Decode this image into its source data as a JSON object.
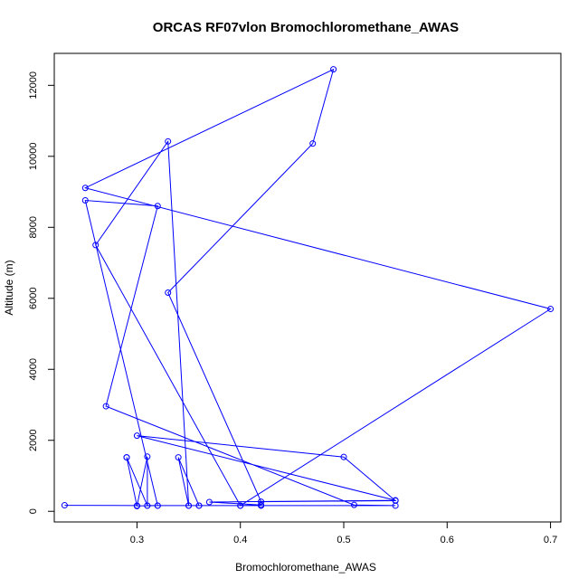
{
  "chart_data": {
    "type": "line",
    "title": "ORCAS RF07vlon Bromochloromethane_AWAS",
    "xlabel": "Bromochloromethane_AWAS",
    "ylabel": "Altitude (m)",
    "xlim": [
      0.22,
      0.71
    ],
    "ylim": [
      -300,
      12900
    ],
    "x_ticks": [
      "0.3",
      "0.4",
      "0.5",
      "0.6",
      "0.7"
    ],
    "y_ticks": [
      "0",
      "2000",
      "4000",
      "6000",
      "8000",
      "10000",
      "12000"
    ],
    "grid": false,
    "markers": "open-circle",
    "colors": {
      "series": "#0000ff",
      "axes": "#000000"
    },
    "series": [
      {
        "x": [
          0.23,
          0.3,
          0.3,
          0.31,
          0.31,
          0.35,
          0.42,
          0.55,
          0.51,
          0.27,
          0.32,
          0.25,
          0.32,
          0.3,
          0.29,
          0.29,
          0.31,
          0.32,
          0.36,
          0.4,
          0.42,
          0.37,
          0.55,
          0.3,
          0.5,
          0.55,
          0.42,
          0.33,
          0.47,
          0.49,
          0.25,
          0.7,
          0.4,
          0.26,
          0.33,
          0.35,
          0.34,
          0.36
        ],
        "y": [
          170,
          160,
          150,
          1540,
          160,
          160,
          160,
          160,
          180,
          2960,
          8600,
          8760,
          160,
          150,
          1520,
          1520,
          160,
          160,
          160,
          160,
          180,
          260,
          310,
          2130,
          1530,
          300,
          270,
          6160,
          10360,
          12450,
          9110,
          5700,
          160,
          7500,
          10420,
          160,
          1520,
          160
        ]
      }
    ]
  }
}
